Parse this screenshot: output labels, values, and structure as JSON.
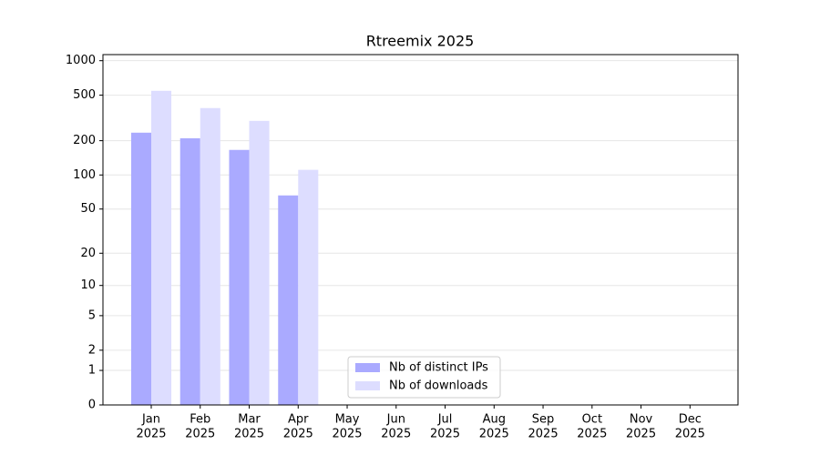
{
  "chart_data": {
    "type": "bar",
    "title": "Rtreemix 2025",
    "categories": [
      [
        "Jan",
        "2025"
      ],
      [
        "Feb",
        "2025"
      ],
      [
        "Mar",
        "2025"
      ],
      [
        "Apr",
        "2025"
      ],
      [
        "May",
        "2025"
      ],
      [
        "Jun",
        "2025"
      ],
      [
        "Jul",
        "2025"
      ],
      [
        "Aug",
        "2025"
      ],
      [
        "Sep",
        "2025"
      ],
      [
        "Oct",
        "2025"
      ],
      [
        "Nov",
        "2025"
      ],
      [
        "Dec",
        "2025"
      ]
    ],
    "series": [
      {
        "name": "Nb of distinct IPs",
        "color": "#aaaaff",
        "values": [
          235,
          210,
          166,
          66,
          null,
          null,
          null,
          null,
          null,
          null,
          null,
          null
        ]
      },
      {
        "name": "Nb of downloads",
        "color": "#ddddff",
        "values": [
          546,
          386,
          298,
          111,
          null,
          null,
          null,
          null,
          null,
          null,
          null,
          null
        ]
      }
    ],
    "yscale": "log1p",
    "ylim": [
      0,
      1130
    ],
    "yticks": [
      0,
      1,
      2,
      5,
      10,
      20,
      50,
      100,
      200,
      500,
      1000
    ],
    "grid": true,
    "legend": "lower center"
  }
}
